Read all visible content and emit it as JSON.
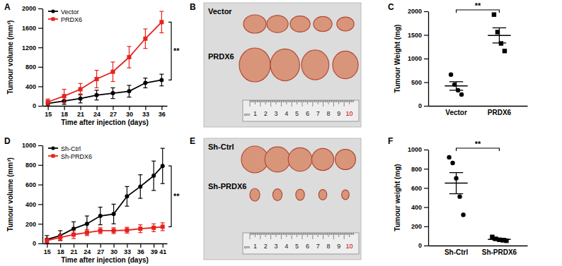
{
  "chart_data": [
    {
      "type": "line",
      "title": "A",
      "x_label": "Time after injection (days)",
      "y_label": "Tumour volume (mm³)",
      "x": [
        15,
        18,
        21,
        24,
        27,
        30,
        33,
        36
      ],
      "xlim": [
        14,
        37
      ],
      "xticks": [
        15,
        18,
        21,
        24,
        27,
        30,
        33,
        36
      ],
      "ylim": [
        0,
        2000
      ],
      "yticks": [
        0,
        400,
        800,
        1200,
        1600,
        2000
      ],
      "legend": "upper left",
      "series": [
        {
          "name": "Vector",
          "color": "#000000",
          "marker": "circle",
          "values": [
            50,
            100,
            150,
            220,
            260,
            300,
            470,
            530
          ],
          "errors": [
            50,
            70,
            90,
            100,
            110,
            120,
            100,
            120
          ]
        },
        {
          "name": "PRDX6",
          "color": "#e8211c",
          "marker": "square",
          "values": [
            80,
            200,
            340,
            550,
            700,
            1000,
            1380,
            1720
          ],
          "errors": [
            60,
            140,
            120,
            180,
            200,
            220,
            200,
            220
          ]
        }
      ],
      "annotations": [
        "**"
      ]
    },
    {
      "type": "photo",
      "title": "B",
      "labels": [
        "Vector",
        "PRDX6"
      ],
      "ruler": [
        "cm",
        "1",
        "2",
        "3",
        "4",
        "5",
        "6",
        "7",
        "8",
        "9",
        "10"
      ]
    },
    {
      "type": "dot",
      "title": "C",
      "y_label": "Tumour Weight (mg)",
      "categories": [
        "Vector",
        "PRDX6"
      ],
      "ylim": [
        0,
        2000
      ],
      "yticks": [
        0,
        500,
        1000,
        1500,
        2000
      ],
      "groups": [
        {
          "values": [
            660,
            450,
            330,
            240
          ],
          "mean": 420,
          "error": 90,
          "marker": "circle"
        },
        {
          "values": [
            1930,
            1560,
            1320,
            1160
          ],
          "mean": 1490,
          "error": 160,
          "marker": "square"
        }
      ],
      "annotations": [
        "**"
      ]
    },
    {
      "type": "line",
      "title": "D",
      "x_label": "Time after injection (days)",
      "y_label": "Tumour volume (mm³)",
      "x": [
        15,
        18,
        21,
        24,
        27,
        30,
        33,
        36,
        39,
        41
      ],
      "xlim": [
        14,
        42
      ],
      "xticks": [
        15,
        18,
        21,
        24,
        27,
        30,
        33,
        36,
        39,
        41
      ],
      "ylim": [
        0,
        1000
      ],
      "yticks": [
        0,
        200,
        400,
        600,
        800,
        1000
      ],
      "legend": "upper left",
      "series": [
        {
          "name": "Sh-Ctrl",
          "color": "#000000",
          "marker": "circle",
          "values": [
            40,
            80,
            150,
            200,
            280,
            300,
            480,
            580,
            690,
            790
          ],
          "errors": [
            40,
            50,
            70,
            80,
            90,
            100,
            100,
            120,
            150,
            180
          ]
        },
        {
          "name": "Sh-PRDX6",
          "color": "#e8211c",
          "marker": "square",
          "values": [
            30,
            60,
            90,
            110,
            130,
            130,
            135,
            150,
            160,
            170
          ],
          "errors": [
            20,
            30,
            40,
            30,
            30,
            30,
            30,
            40,
            40,
            40
          ]
        }
      ],
      "annotations": [
        "**"
      ]
    },
    {
      "type": "photo",
      "title": "E",
      "labels": [
        "Sh-Ctrl",
        "Sh-PRDX6"
      ],
      "ruler": [
        "cm",
        "1",
        "2",
        "3",
        "4",
        "5",
        "6",
        "7",
        "8",
        "9",
        "10"
      ]
    },
    {
      "type": "dot",
      "title": "F",
      "y_label": "Tumour weight (mg)",
      "categories": [
        "Sh-Ctrl",
        "Sh-PRDX6"
      ],
      "ylim": [
        0,
        1000
      ],
      "yticks": [
        0,
        200,
        400,
        600,
        800,
        1000
      ],
      "groups": [
        {
          "values": [
            920,
            860,
            700,
            510,
            320
          ],
          "mean": 650,
          "error": 110,
          "marker": "circle"
        },
        {
          "values": [
            90,
            70,
            60,
            55,
            50
          ],
          "mean": 65,
          "error": 10,
          "marker": "square"
        }
      ],
      "annotations": [
        "**"
      ]
    }
  ]
}
